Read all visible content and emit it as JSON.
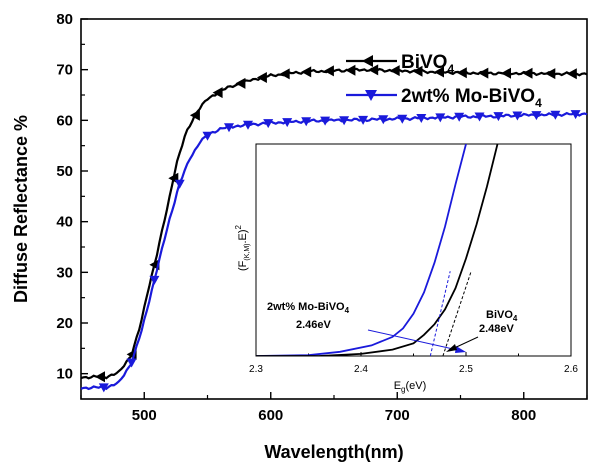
{
  "chart_data": [
    {
      "type": "line",
      "xlabel": "Wavelength(nm)",
      "ylabel": "Diffuse Reflectance %",
      "xlim": [
        450,
        850
      ],
      "ylim": [
        5,
        80
      ],
      "xticks": [
        500,
        600,
        700,
        800
      ],
      "yticks": [
        10,
        20,
        30,
        40,
        50,
        60,
        70,
        80
      ],
      "grid": false,
      "legend": {
        "placement": "top-right",
        "entries": [
          {
            "label": "BiVO",
            "sub": "4",
            "suffix": ""
          },
          {
            "label": "2wt% Mo-BiVO",
            "sub": "4",
            "suffix": ""
          }
        ]
      },
      "series": [
        {
          "name": "BiVO4",
          "color": "#000000",
          "marker": "left-triangle",
          "points": [
            [
              450,
              9.3
            ],
            [
              470,
              9.4
            ],
            [
              480,
              10.2
            ],
            [
              490,
              13.8
            ],
            [
              497,
              19.5
            ],
            [
              503,
              26.5
            ],
            [
              510,
              33.5
            ],
            [
              518,
              42.5
            ],
            [
              525,
              51
            ],
            [
              533,
              57.5
            ],
            [
              541,
              61.5
            ],
            [
              550,
              64.2
            ],
            [
              560,
              65.8
            ],
            [
              570,
              66.8
            ],
            [
              580,
              67.6
            ],
            [
              590,
              68.3
            ],
            [
              600,
              68.8
            ],
            [
              615,
              69.3
            ],
            [
              630,
              69.6
            ],
            [
              650,
              69.8
            ],
            [
              675,
              70.0
            ],
            [
              700,
              69.8
            ],
            [
              725,
              69.6
            ],
            [
              750,
              69.4
            ],
            [
              775,
              69.3
            ],
            [
              800,
              69.3
            ],
            [
              825,
              69.2
            ],
            [
              850,
              69.2
            ]
          ],
          "marker_x": [
            465,
            490,
            508,
            523,
            540,
            558,
            576,
            593,
            611,
            628,
            646,
            663,
            681,
            698,
            716,
            733,
            751,
            768,
            786,
            803,
            821,
            838
          ]
        },
        {
          "name": "2wt% Mo-BiVO4",
          "color": "#1a1adb",
          "marker": "down-triangle",
          "points": [
            [
              450,
              7.2
            ],
            [
              470,
              7.3
            ],
            [
              480,
              8.2
            ],
            [
              490,
              12.2
            ],
            [
              498,
              18.5
            ],
            [
              505,
              25.5
            ],
            [
              513,
              33.5
            ],
            [
              520,
              40.5
            ],
            [
              528,
              47.5
            ],
            [
              536,
              52.5
            ],
            [
              544,
              55.7
            ],
            [
              552,
              57.4
            ],
            [
              560,
              58.3
            ],
            [
              570,
              58.8
            ],
            [
              585,
              59.2
            ],
            [
              600,
              59.5
            ],
            [
              625,
              59.8
            ],
            [
              650,
              60.0
            ],
            [
              675,
              60.1
            ],
            [
              700,
              60.3
            ],
            [
              725,
              60.5
            ],
            [
              750,
              60.7
            ],
            [
              775,
              60.8
            ],
            [
              800,
              61.0
            ],
            [
              825,
              61.1
            ],
            [
              850,
              61.3
            ]
          ],
          "marker_x": [
            468,
            490,
            508,
            528,
            550,
            567,
            582,
            598,
            613,
            628,
            643,
            658,
            673,
            689,
            704,
            719,
            734,
            749,
            765,
            780,
            795,
            810,
            825,
            841
          ]
        }
      ]
    },
    {
      "type": "line",
      "xlabel": "E",
      "xlabel_sub": "g",
      "xlabel_suffix": "(eV)",
      "ylabel": "(F",
      "ylabel_sub": "(K,M)",
      "ylabel_suffix": ".E)",
      "ylabel_sup": "2",
      "xlim": [
        2.3,
        2.6
      ],
      "ylim": [
        0,
        1
      ],
      "xticks": [
        "2.3",
        "2.4",
        "2.5",
        "2.6"
      ],
      "series": [
        {
          "name": "2wt% Mo-BiVO4",
          "color": "#1a1adb",
          "points": [
            [
              2.3,
              0.0
            ],
            [
              2.35,
              0.004
            ],
            [
              2.38,
              0.02
            ],
            [
              2.41,
              0.05
            ],
            [
              2.43,
              0.09
            ],
            [
              2.44,
              0.13
            ],
            [
              2.45,
              0.2
            ],
            [
              2.46,
              0.3
            ],
            [
              2.47,
              0.44
            ],
            [
              2.48,
              0.61
            ],
            [
              2.49,
              0.81
            ],
            [
              2.5,
              1.0
            ]
          ]
        },
        {
          "name": "BiVO4",
          "color": "#000000",
          "points": [
            [
              2.3,
              0.0
            ],
            [
              2.36,
              0.0
            ],
            [
              2.4,
              0.01
            ],
            [
              2.43,
              0.03
            ],
            [
              2.45,
              0.06
            ],
            [
              2.46,
              0.1
            ],
            [
              2.47,
              0.15
            ],
            [
              2.48,
              0.22
            ],
            [
              2.49,
              0.32
            ],
            [
              2.5,
              0.46
            ],
            [
              2.51,
              0.62
            ],
            [
              2.52,
              0.8
            ],
            [
              2.53,
              1.0
            ]
          ]
        }
      ],
      "tangents": [
        {
          "color": "#1a1adb",
          "from": [
            2.466,
            0.0
          ],
          "to": [
            2.485,
            0.4
          ]
        },
        {
          "color": "#000000",
          "from": [
            2.478,
            0.0
          ],
          "to": [
            2.505,
            0.4
          ]
        }
      ],
      "annotations": [
        {
          "name": "mo-label",
          "line1": "2wt% Mo-BiVO",
          "line1_sub": "4",
          "line2": "2.46eV",
          "color": "#000000"
        },
        {
          "name": "bivo-label",
          "line1": "BiVO",
          "line1_sub": "4",
          "line2": "2.48eV",
          "color": "#000000"
        }
      ],
      "arrow_colors": [
        "#1a1adb",
        "#000000"
      ]
    }
  ]
}
